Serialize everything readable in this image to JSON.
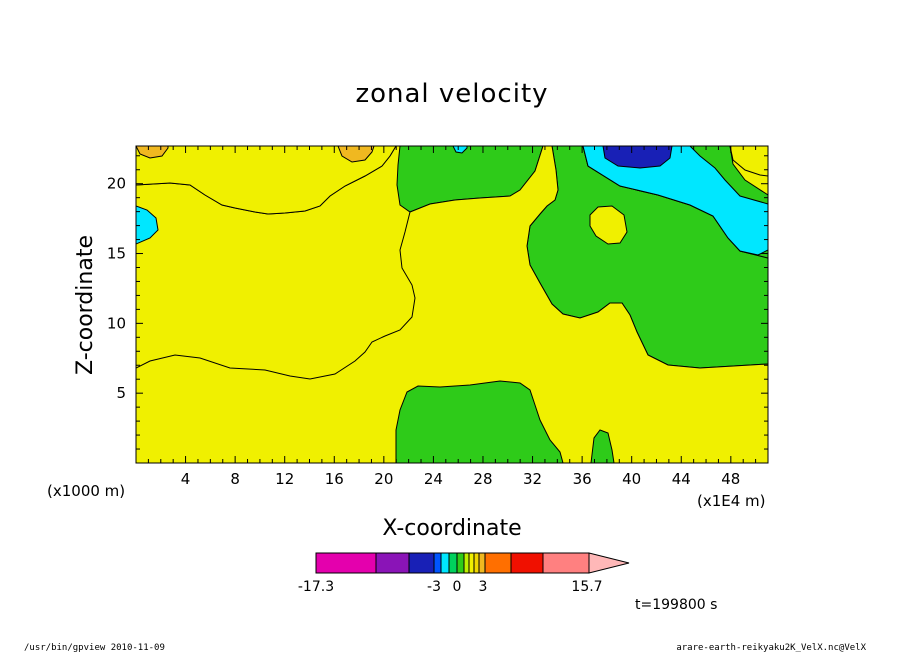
{
  "chart_data": {
    "type": "heatmap",
    "title": "zonal velocity",
    "xlabel": "X-coordinate",
    "ylabel": "Z-coordinate",
    "x_unit_label": "(x1000 m)",
    "x_scale_label": "(x1E4 m)",
    "x_ticks": [
      4,
      8,
      12,
      16,
      20,
      24,
      28,
      32,
      36,
      40,
      44,
      48
    ],
    "y_ticks": [
      5,
      10,
      15,
      20
    ],
    "xlim": [
      0,
      51
    ],
    "ylim": [
      0,
      22.7
    ],
    "colorbar": {
      "colors": [
        "#e400ad",
        "#8a14b7",
        "#1820b6",
        "#0055ff",
        "#00e7ff",
        "#00d15d",
        "#2ecb19",
        "#bef000",
        "#f0f000",
        "#f0d700",
        "#f0b820",
        "#ff6f00",
        "#f01000",
        "#ff8080",
        "#ffb8b8"
      ],
      "tick_labels": [
        "-17.3",
        "-3",
        "0",
        "3",
        "15.7"
      ]
    },
    "regions": [
      {
        "name": "yellow",
        "color": "#f0f000"
      },
      {
        "name": "green",
        "color": "#2ecb19"
      },
      {
        "name": "cyan",
        "color": "#00e7ff"
      },
      {
        "name": "blue",
        "color": "#1820b6"
      },
      {
        "name": "orange",
        "color": "#f0b820"
      }
    ],
    "time_label": "t=199800 s"
  },
  "footer": {
    "left": "/usr/bin/gpview  2010-11-09",
    "right": "arare-earth-reikyaku2K_VelX.nc@VelX"
  }
}
